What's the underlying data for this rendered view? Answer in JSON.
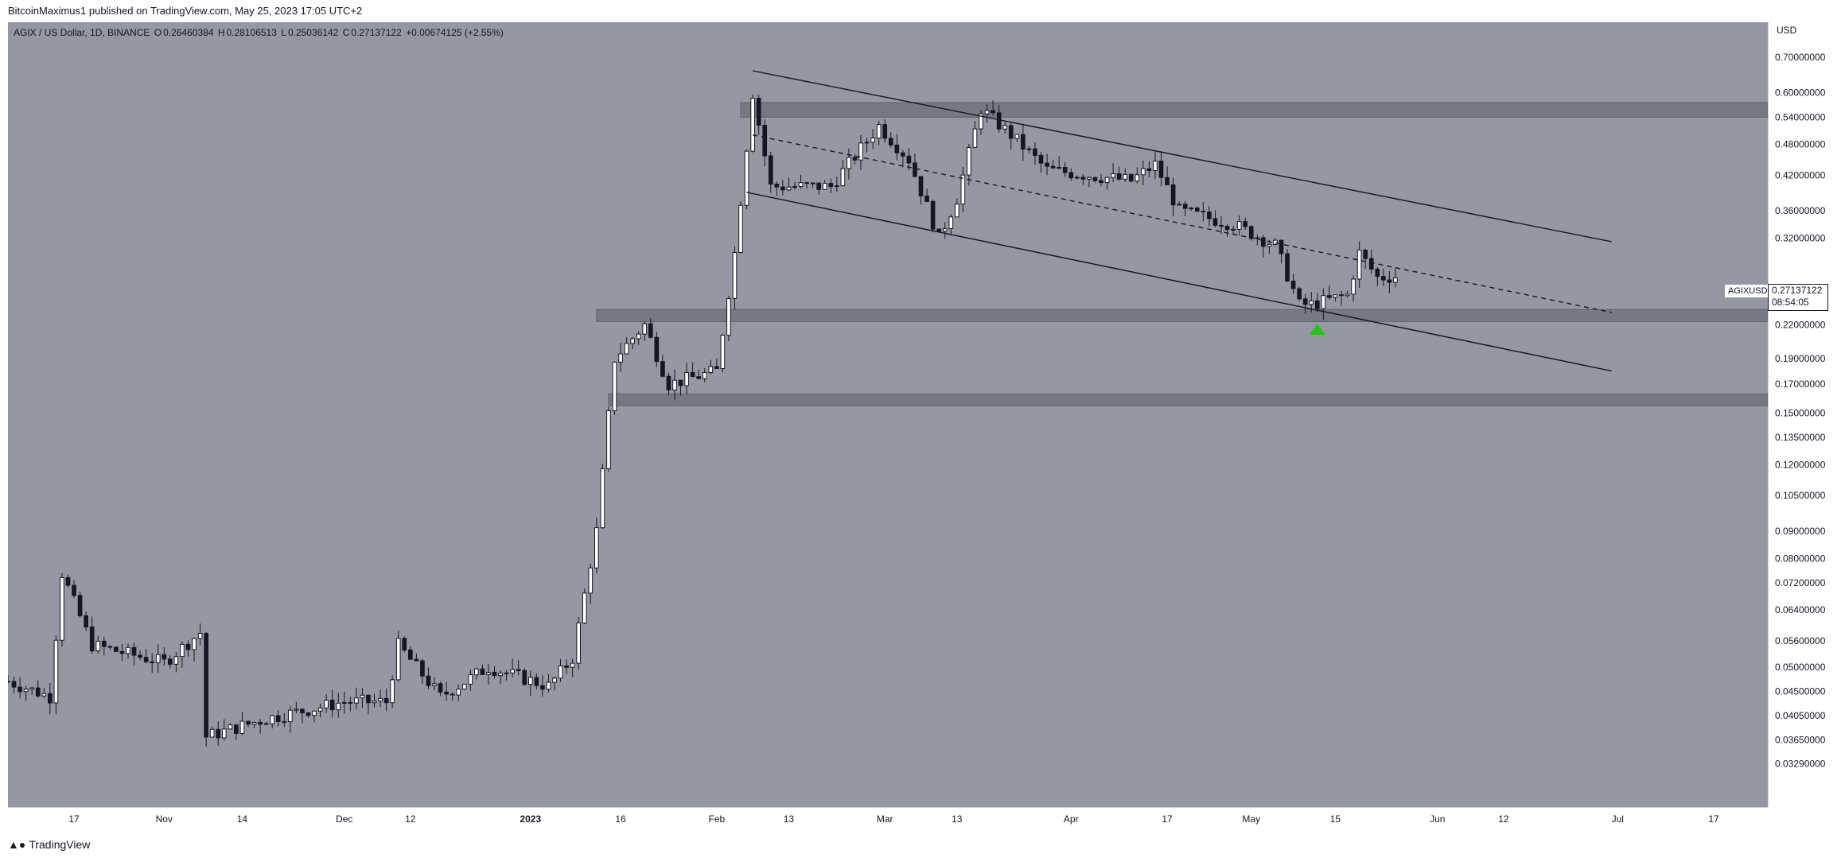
{
  "header": {
    "published_by": "BitcoinMaximus1 published on TradingView.com, May 25, 2023 17:05 UTC+2"
  },
  "legend": {
    "symbol": "AGIX / US Dollar, 1D, BINANCE",
    "open_label": "O",
    "open": "0.26460384",
    "high_label": "H",
    "high": "0.28106513",
    "low_label": "L",
    "low": "0.25036142",
    "close_label": "C",
    "close": "0.27137122",
    "change": "+0.00674125 (+2.55%)"
  },
  "price_tag": {
    "symbol": "AGIXUSD",
    "price": "0.27137122",
    "countdown": "08:54:05"
  },
  "footer": {
    "brand": "TradingView"
  },
  "colors": {
    "background": "#9598a1",
    "up_candle": "#ffffff",
    "down_candle": "#131722",
    "zone": "#6f727a",
    "arrow": "#26c216"
  },
  "chart_data": {
    "type": "candlestick",
    "title": "AGIX / US Dollar, 1D, BINANCE",
    "y_scale": "log",
    "y_unit": "USD",
    "ylim": [
      0.0313,
      0.76
    ],
    "price_axis_label": "USD",
    "y_ticks": [
      "0.70000000",
      "0.60000000",
      "0.54000000",
      "0.48000000",
      "0.42000000",
      "0.36000000",
      "0.32000000",
      "0.22000000",
      "0.19000000",
      "0.17000000",
      "0.15000000",
      "0.13500000",
      "0.12000000",
      "0.10500000",
      "0.09000000",
      "0.08000000",
      "0.07200000",
      "0.06400000",
      "0.05600000",
      "0.05000000",
      "0.04500000",
      "0.04050000",
      "0.03650000",
      "0.03290000"
    ],
    "x_ticks": [
      "17",
      "Nov",
      "14",
      "Dec",
      "12",
      "2023",
      "16",
      "Feb",
      "13",
      "Mar",
      "13",
      "Apr",
      "17",
      "May",
      "15",
      "Jun",
      "12",
      "Jul",
      "17"
    ],
    "x_range": [
      "2022-10-06",
      "2023-07-26"
    ],
    "key_points": [
      {
        "date": "2022-10-06",
        "price": 0.047
      },
      {
        "date": "2022-10-13",
        "price": 0.044
      },
      {
        "date": "2022-10-15",
        "price": 0.075
      },
      {
        "date": "2022-10-20",
        "price": 0.055
      },
      {
        "date": "2022-11-01",
        "price": 0.051
      },
      {
        "date": "2022-11-07",
        "price": 0.058
      },
      {
        "date": "2022-11-08",
        "price": 0.037
      },
      {
        "date": "2022-11-18",
        "price": 0.04
      },
      {
        "date": "2022-12-01",
        "price": 0.043
      },
      {
        "date": "2022-12-08",
        "price": 0.043
      },
      {
        "date": "2022-12-10",
        "price": 0.055
      },
      {
        "date": "2022-12-17",
        "price": 0.044
      },
      {
        "date": "2022-12-25",
        "price": 0.05
      },
      {
        "date": "2023-01-04",
        "price": 0.046
      },
      {
        "date": "2023-01-08",
        "price": 0.052
      },
      {
        "date": "2023-01-12",
        "price": 0.09
      },
      {
        "date": "2023-01-15",
        "price": 0.19
      },
      {
        "date": "2023-01-20",
        "price": 0.22
      },
      {
        "date": "2023-01-24",
        "price": 0.17
      },
      {
        "date": "2023-02-01",
        "price": 0.18
      },
      {
        "date": "2023-02-04",
        "price": 0.3
      },
      {
        "date": "2023-02-07",
        "price": 0.6
      },
      {
        "date": "2023-02-10",
        "price": 0.4
      },
      {
        "date": "2023-02-20",
        "price": 0.4
      },
      {
        "date": "2023-02-28",
        "price": 0.52
      },
      {
        "date": "2023-03-05",
        "price": 0.45
      },
      {
        "date": "2023-03-10",
        "price": 0.32
      },
      {
        "date": "2023-03-13",
        "price": 0.38
      },
      {
        "date": "2023-03-17",
        "price": 0.56
      },
      {
        "date": "2023-03-22",
        "price": 0.5
      },
      {
        "date": "2023-03-28",
        "price": 0.43
      },
      {
        "date": "2023-04-11",
        "price": 0.41
      },
      {
        "date": "2023-04-15",
        "price": 0.44
      },
      {
        "date": "2023-04-19",
        "price": 0.36
      },
      {
        "date": "2023-04-28",
        "price": 0.34
      },
      {
        "date": "2023-05-05",
        "price": 0.31
      },
      {
        "date": "2023-05-09",
        "price": 0.24
      },
      {
        "date": "2023-05-11",
        "price": 0.24
      },
      {
        "date": "2023-05-17",
        "price": 0.25
      },
      {
        "date": "2023-05-19",
        "price": 0.3
      },
      {
        "date": "2023-05-22",
        "price": 0.27
      },
      {
        "date": "2023-05-25",
        "price": 0.271
      }
    ],
    "horizontal_zones": [
      {
        "from_date": "2023-02-05",
        "low": 0.54,
        "high": 0.575
      },
      {
        "from_date": "2023-01-12",
        "low": 0.223,
        "high": 0.235
      },
      {
        "from_date": "2023-01-14",
        "low": 0.155,
        "high": 0.163
      }
    ],
    "descending_channel": {
      "upper": [
        {
          "date": "2023-02-07",
          "price": 0.66
        },
        {
          "date": "2023-06-30",
          "price": 0.315
        }
      ],
      "middle": [
        {
          "date": "2023-02-07",
          "price": 0.5
        },
        {
          "date": "2023-06-30",
          "price": 0.232
        }
      ],
      "lower": [
        {
          "date": "2023-02-06",
          "price": 0.39
        },
        {
          "date": "2023-06-30",
          "price": 0.18
        }
      ]
    },
    "marker": {
      "type": "up-arrow",
      "date": "2023-05-12",
      "price": 0.218
    }
  }
}
